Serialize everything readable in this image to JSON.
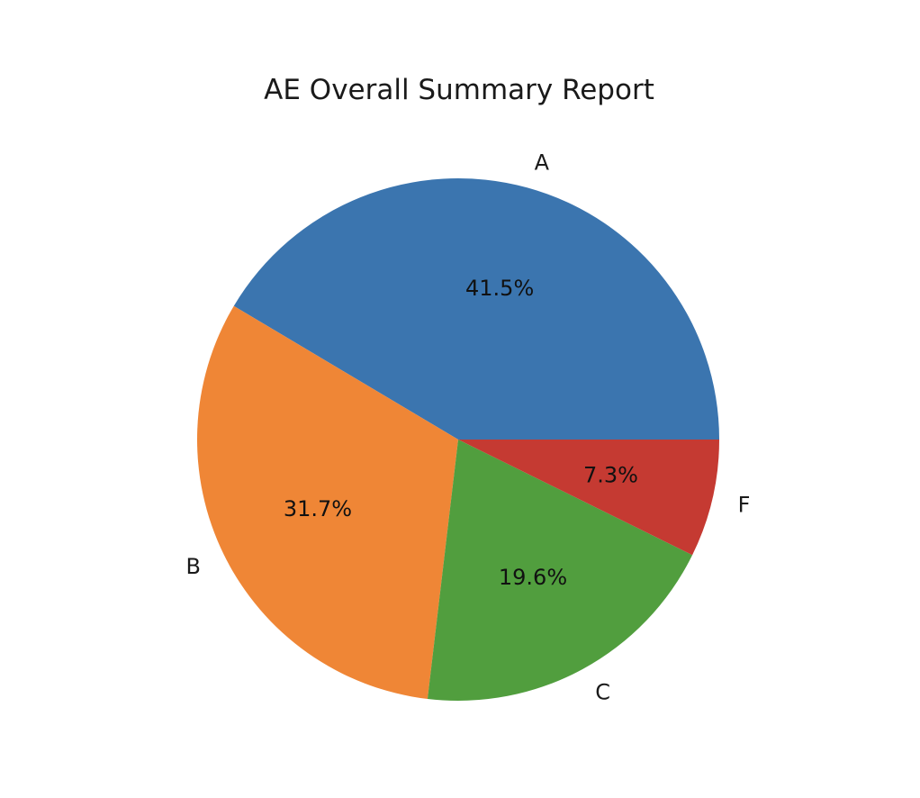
{
  "chart_data": {
    "type": "pie",
    "title": "AE Overall Summary Report",
    "categories": [
      "A",
      "B",
      "C",
      "F"
    ],
    "values": [
      41.5,
      31.7,
      19.6,
      7.3
    ],
    "value_labels": [
      "41.5%",
      "31.7%",
      "19.6%",
      "7.3%"
    ],
    "colors": [
      "#3b75af",
      "#ef8636",
      "#519e3e",
      "#c53a32"
    ],
    "start_angle_deg": 0,
    "direction": "counterclockwise"
  }
}
